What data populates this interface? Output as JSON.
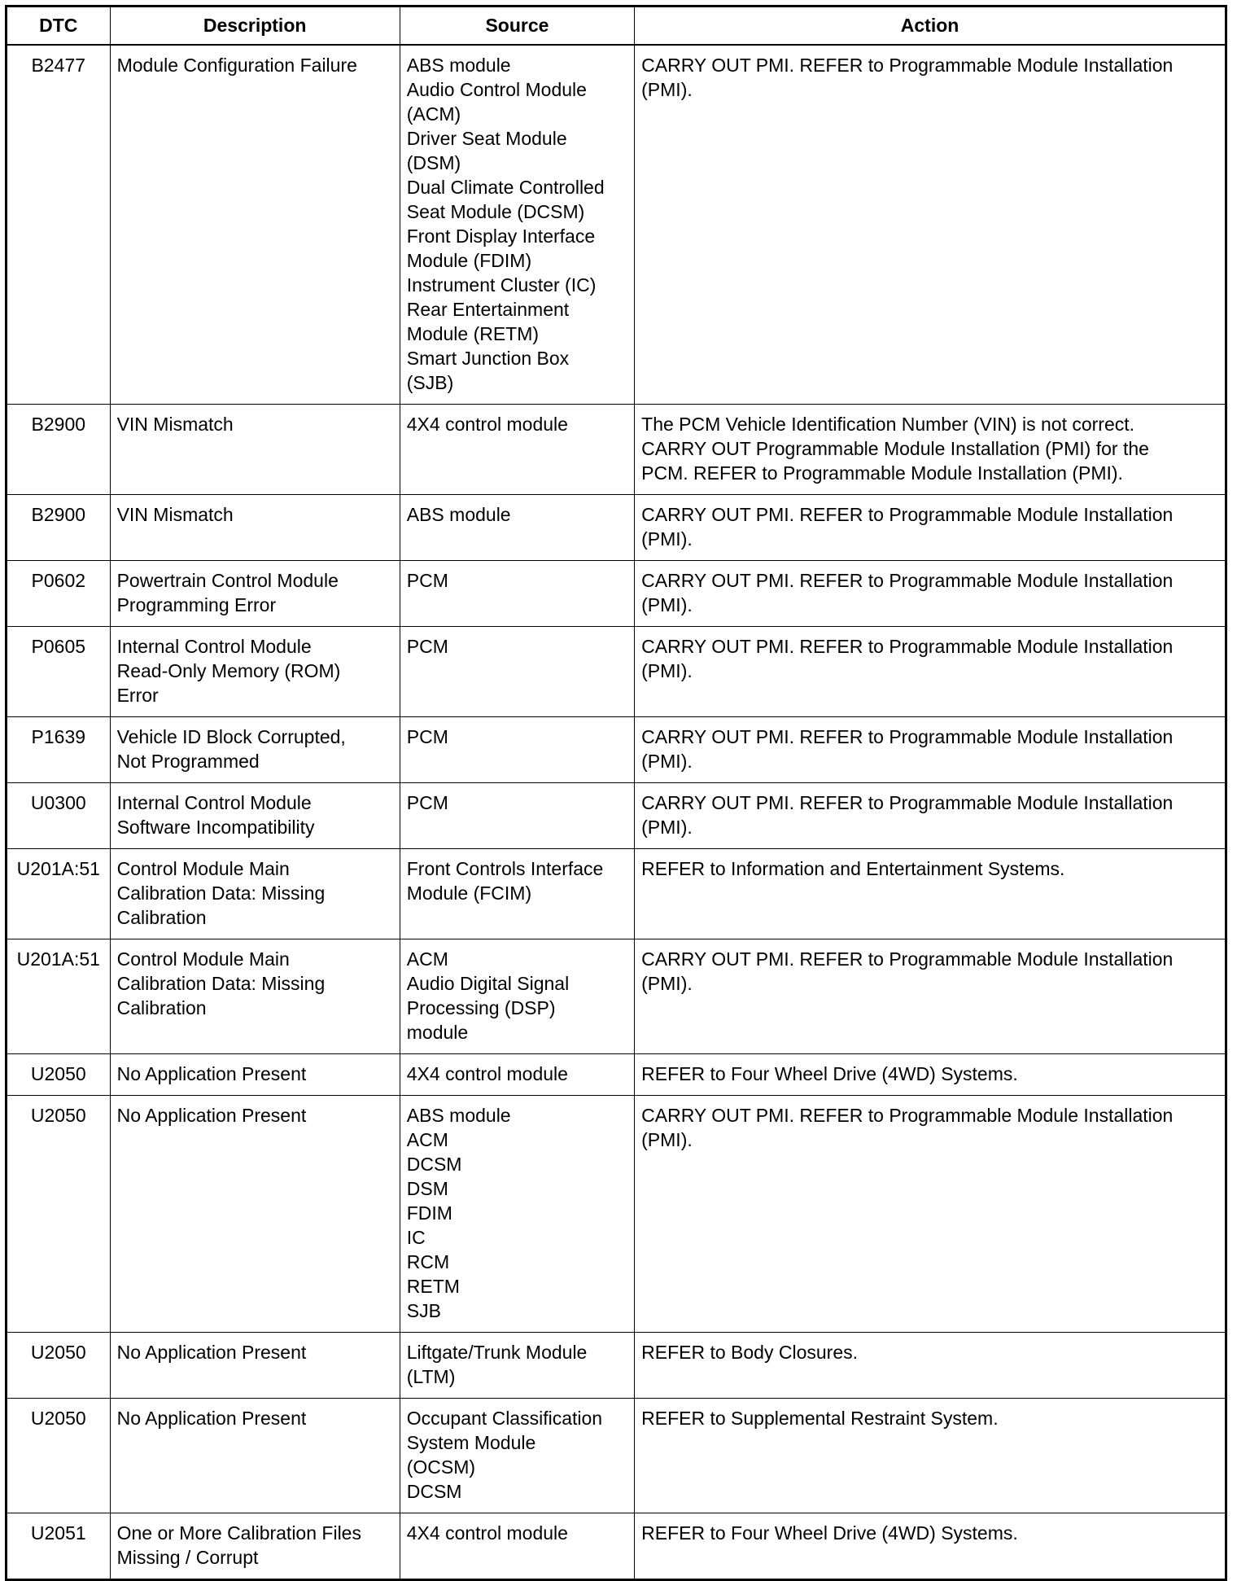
{
  "headers": {
    "dtc": "DTC",
    "description": "Description",
    "source": "Source",
    "action": "Action"
  },
  "rows": [
    {
      "dtc": "B2477",
      "description": [
        "Module Configuration Failure"
      ],
      "source": [
        "ABS module",
        "Audio Control Module",
        "(ACM)",
        "Driver Seat Module",
        "(DSM)",
        "Dual Climate Controlled",
        "Seat Module (DCSM)",
        "Front Display Interface",
        "Module (FDIM)",
        "Instrument Cluster (IC)",
        "Rear Entertainment",
        "Module (RETM)",
        "Smart Junction Box",
        "(SJB)"
      ],
      "action": [
        "CARRY OUT PMI. REFER to Programmable Module Installation",
        "(PMI)."
      ]
    },
    {
      "dtc": "B2900",
      "description": [
        "VIN Mismatch"
      ],
      "source": [
        "4X4 control module"
      ],
      "action": [
        "The PCM Vehicle Identification Number (VIN) is not correct.",
        "CARRY OUT Programmable Module Installation (PMI) for the",
        "PCM. REFER to Programmable Module Installation (PMI)."
      ]
    },
    {
      "dtc": "B2900",
      "description": [
        "VIN Mismatch"
      ],
      "source": [
        "ABS module"
      ],
      "action": [
        "CARRY OUT PMI. REFER to Programmable Module Installation",
        "(PMI)."
      ]
    },
    {
      "dtc": "P0602",
      "description": [
        "Powertrain Control Module",
        "Programming Error"
      ],
      "source": [
        "PCM"
      ],
      "action": [
        "CARRY OUT PMI. REFER to Programmable Module Installation",
        "(PMI)."
      ]
    },
    {
      "dtc": "P0605",
      "description": [
        "Internal Control Module",
        "Read-Only Memory (ROM)",
        "Error"
      ],
      "source": [
        "PCM"
      ],
      "action": [
        "CARRY OUT PMI. REFER to Programmable Module Installation",
        "(PMI)."
      ]
    },
    {
      "dtc": "P1639",
      "description": [
        "Vehicle ID Block Corrupted,",
        "Not Programmed"
      ],
      "source": [
        "PCM"
      ],
      "action": [
        "CARRY OUT PMI. REFER to Programmable Module Installation",
        "(PMI)."
      ]
    },
    {
      "dtc": "U0300",
      "description": [
        "Internal Control Module",
        "Software Incompatibility"
      ],
      "source": [
        "PCM"
      ],
      "action": [
        "CARRY OUT PMI. REFER to Programmable Module Installation",
        "(PMI)."
      ]
    },
    {
      "dtc": "U201A:51",
      "description": [
        "Control Module Main",
        "Calibration Data: Missing",
        "Calibration"
      ],
      "source": [
        "Front Controls Interface",
        "Module (FCIM)"
      ],
      "action": [
        "REFER to Information and Entertainment Systems."
      ]
    },
    {
      "dtc": "U201A:51",
      "description": [
        "Control Module Main",
        "Calibration Data: Missing",
        "Calibration"
      ],
      "source": [
        "ACM",
        "Audio Digital Signal",
        "Processing (DSP)",
        "module"
      ],
      "action": [
        "CARRY OUT PMI. REFER to Programmable Module Installation",
        "(PMI)."
      ]
    },
    {
      "dtc": "U2050",
      "description": [
        "No Application Present"
      ],
      "source": [
        "4X4 control module"
      ],
      "action": [
        "REFER to Four Wheel Drive (4WD) Systems."
      ]
    },
    {
      "dtc": "U2050",
      "description": [
        "No Application Present"
      ],
      "source": [
        "ABS module",
        "ACM",
        "DCSM",
        "DSM",
        "FDIM",
        "IC",
        "RCM",
        "RETM",
        "SJB"
      ],
      "action": [
        "CARRY OUT PMI. REFER to Programmable Module Installation",
        "(PMI)."
      ]
    },
    {
      "dtc": "U2050",
      "description": [
        "No Application Present"
      ],
      "source": [
        "Liftgate/Trunk Module",
        "(LTM)"
      ],
      "action": [
        "REFER to Body Closures."
      ]
    },
    {
      "dtc": "U2050",
      "description": [
        "No Application Present"
      ],
      "source": [
        "Occupant Classification",
        "System Module",
        "(OCSM)",
        "DCSM"
      ],
      "action": [
        "REFER to Supplemental Restraint System."
      ]
    },
    {
      "dtc": "U2051",
      "description": [
        "One or More Calibration Files",
        "Missing / Corrupt"
      ],
      "source": [
        "4X4 control module"
      ],
      "action": [
        "REFER to Four Wheel Drive (4WD) Systems."
      ]
    }
  ]
}
